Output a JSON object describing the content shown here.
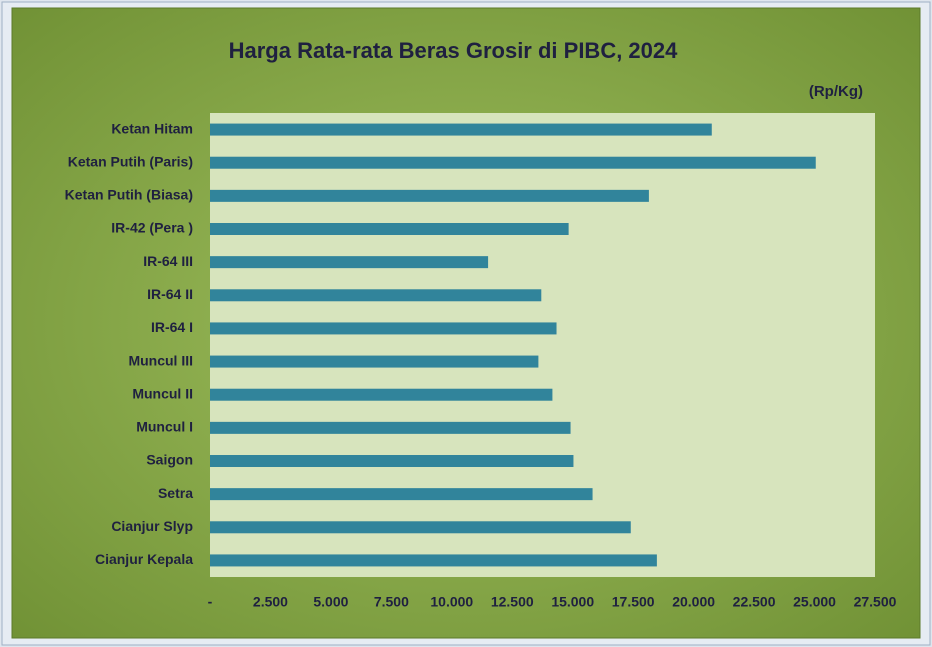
{
  "chart_data": {
    "type": "bar",
    "orientation": "horizontal",
    "title": "Harga Rata-rata Beras Grosir di PIBC, 2024",
    "unit_label": "(Rp/Kg)",
    "categories": [
      "Ketan Hitam",
      "Ketan Putih (Paris)",
      "Ketan Putih (Biasa)",
      "IR-42 (Pera )",
      "IR-64 III",
      "IR-64 II",
      "IR-64 I",
      "Muncul III",
      "Muncul II",
      "Muncul I",
      "Saigon",
      "Setra",
      "Cianjur Slyp",
      "Cianjur Kepala"
    ],
    "values": [
      20750,
      25050,
      18150,
      14830,
      11500,
      13700,
      14330,
      13580,
      14160,
      14910,
      15030,
      15820,
      17400,
      18480
    ],
    "color": "#31849b",
    "xlim": [
      0,
      27500
    ],
    "xticks": [
      {
        "value": 0,
        "label": "-"
      },
      {
        "value": 2500,
        "label": "2.500"
      },
      {
        "value": 5000,
        "label": "5.000"
      },
      {
        "value": 7500,
        "label": "7.500"
      },
      {
        "value": 10000,
        "label": "10.000"
      },
      {
        "value": 12500,
        "label": "12.500"
      },
      {
        "value": 15000,
        "label": "15.000"
      },
      {
        "value": 17500,
        "label": "17.500"
      },
      {
        "value": 20000,
        "label": "20.000"
      },
      {
        "value": 22500,
        "label": "22.500"
      },
      {
        "value": 25000,
        "label": "25.000"
      },
      {
        "value": 27500,
        "label": "27.500"
      }
    ],
    "grid": false
  }
}
